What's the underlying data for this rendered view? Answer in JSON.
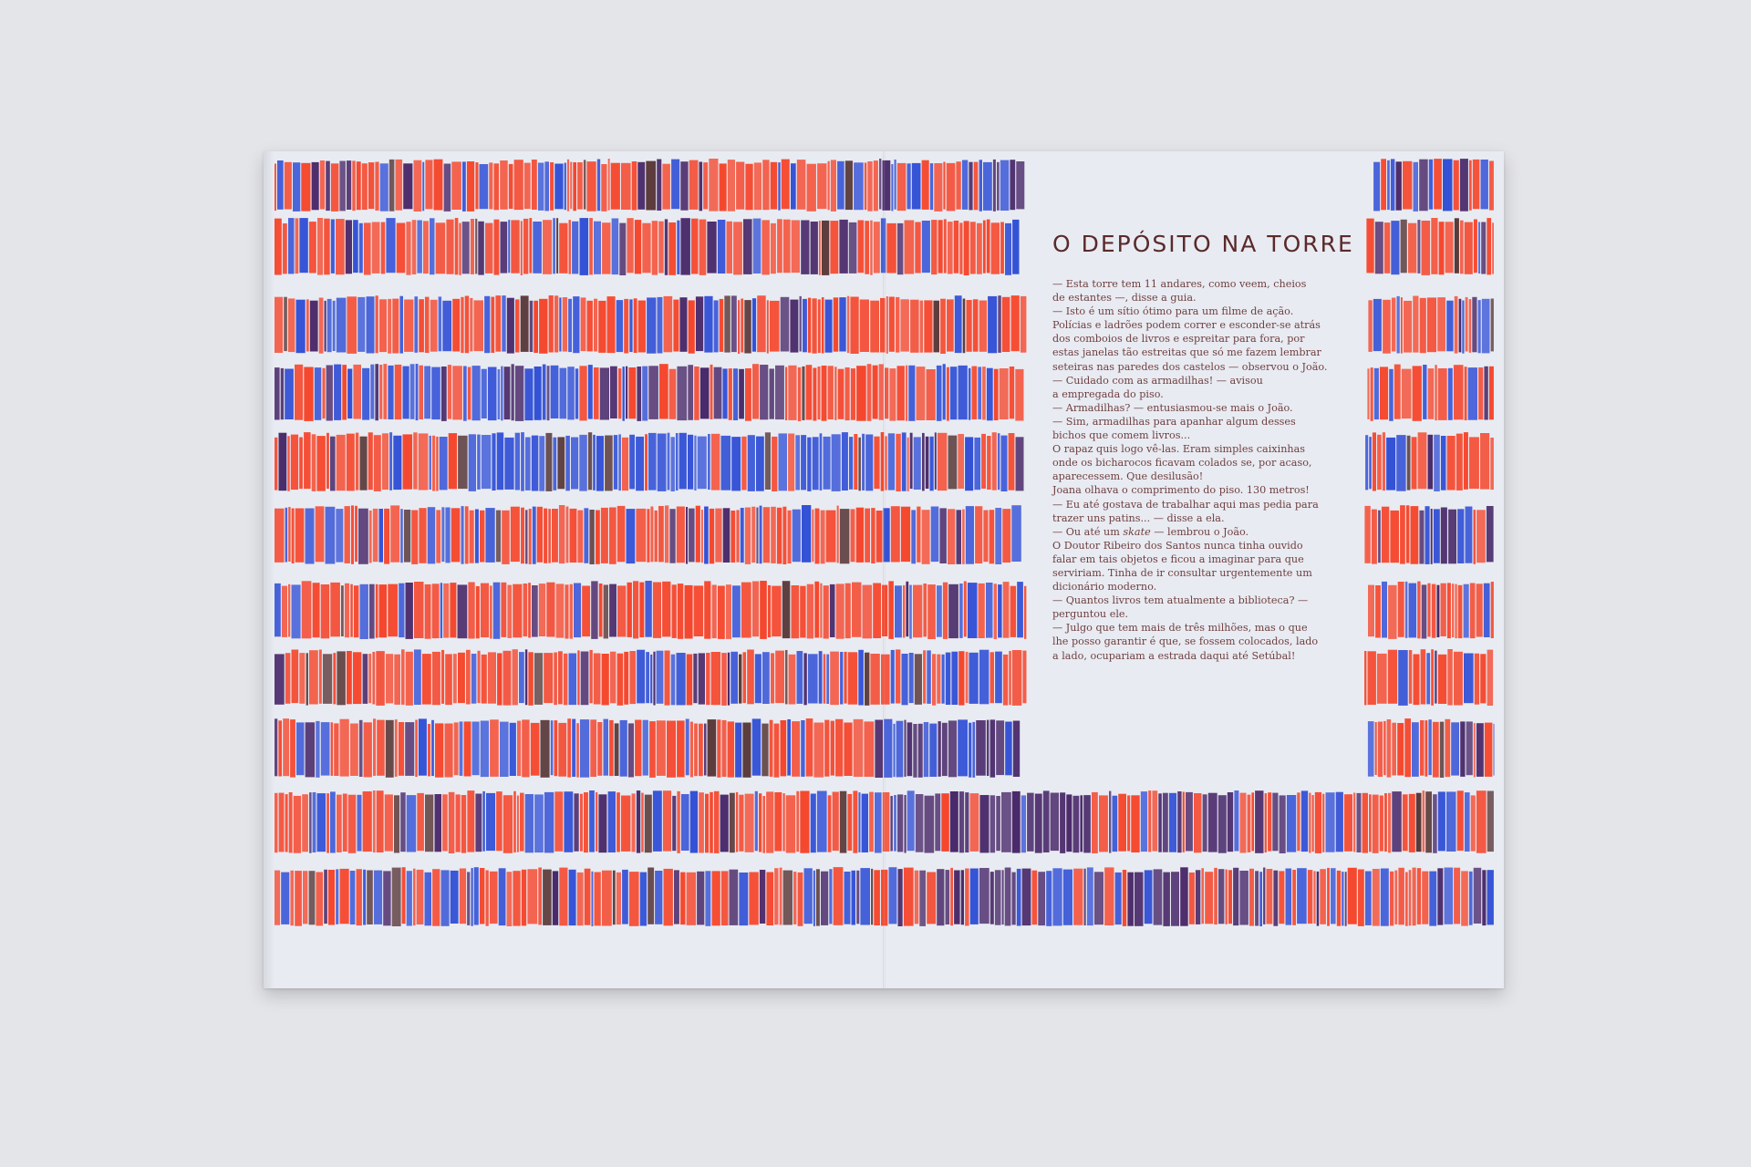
{
  "page": {
    "title": "O DEPÓSITO NA TORRE",
    "lines": [
      "— Esta torre tem 11 andares, como veem, cheios",
      "de estantes —, disse a guia.",
      "— Isto é um sítio ótimo para um filme de ação.",
      "Polícias e ladrões podem correr e esconder-se atrás",
      "dos comboios de livros e espreitar para fora, por",
      "estas janelas tão estreitas que só me fazem lembrar",
      "seteiras nas paredes dos castelos — observou o João.",
      "— Cuidado com as armadilhas! — avisou",
      "a empregada do piso.",
      "— Armadilhas? — entusiasmou-se mais o João.",
      "— Sim, armadilhas para apanhar algum desses",
      "bichos que comem livros...",
      "O rapaz quis logo vê-las. Eram simples caixinhas",
      "onde os bicharocos ficavam colados se, por acaso,",
      "aparecessem. Que desilusão!",
      "Joana olhava o comprimento do piso. 130 metros!",
      "— Eu até gostava de trabalhar aqui mas pedia para",
      "trazer uns patins... — disse a ela.",
      "— Ou até um skate — lembrou o João.",
      "O Doutor Ribeiro dos Santos nunca tinha ouvido",
      "falar em tais objetos e ficou a imaginar para que",
      "serviriam. Tinha de ir consultar urgentemente um",
      "dicionário moderno.",
      "— Quantos livros tem atualmente a biblioteca? —",
      "perguntou ele.",
      "— Julgo que tem mais de três milhões, mas o que",
      "lhe posso garantir é que, se fossem colocados, lado",
      "a lado, ocupariam a estrada daqui até Setúbal!"
    ]
  },
  "colors": {
    "red": "#f5472d",
    "blue": "#3452d6",
    "purple": "#4a2a6a",
    "brown": "#5a3a3a",
    "paper": "#e9ebf2",
    "ink": "#6e4040"
  }
}
